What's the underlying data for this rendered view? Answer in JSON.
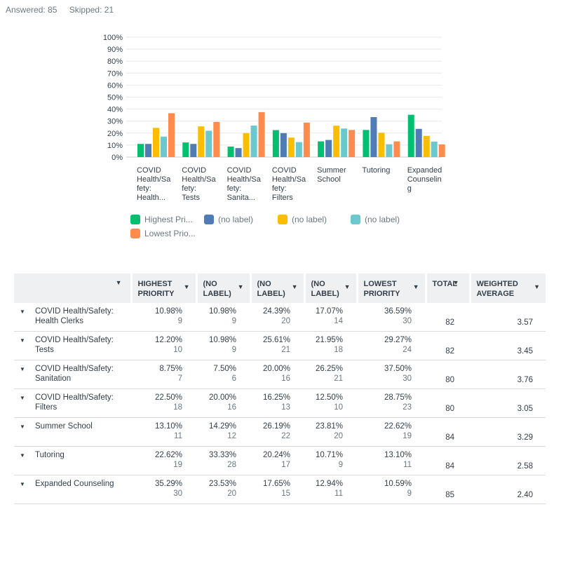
{
  "summary": {
    "answered": "Answered: 85",
    "skipped": "Skipped: 21"
  },
  "colors": [
    "#00bf6f",
    "#507cb6",
    "#f9be00",
    "#6bc8cd",
    "#ff8b4f"
  ],
  "chart_data": {
    "type": "bar",
    "categories": [
      [
        "COVID",
        "Health/Sa",
        "fety:",
        "Health..."
      ],
      [
        "COVID",
        "Health/Sa",
        "fety:",
        "Tests"
      ],
      [
        "COVID",
        "Health/Sa",
        "fety:",
        "Sanita..."
      ],
      [
        "COVID",
        "Health/Sa",
        "fety:",
        "Filters"
      ],
      [
        "Summer",
        "School"
      ],
      [
        "Tutoring"
      ],
      [
        "Expanded",
        "Counselin",
        "g"
      ]
    ],
    "series": [
      {
        "name": "Highest Pri...",
        "values": [
          10.98,
          12.2,
          8.75,
          22.5,
          13.1,
          22.62,
          35.29
        ]
      },
      {
        "name": "(no label)",
        "values": [
          10.98,
          10.98,
          7.5,
          20.0,
          14.29,
          33.33,
          23.53
        ]
      },
      {
        "name": "(no label)",
        "values": [
          24.39,
          25.61,
          20.0,
          16.25,
          26.19,
          20.24,
          17.65
        ]
      },
      {
        "name": "(no label)",
        "values": [
          17.07,
          21.95,
          26.25,
          12.5,
          23.81,
          10.71,
          12.94
        ]
      },
      {
        "name": "Lowest Prio...",
        "values": [
          36.59,
          29.27,
          37.5,
          28.75,
          22.62,
          13.1,
          10.59
        ]
      }
    ],
    "yticks": [
      "0%",
      "10%",
      "20%",
      "30%",
      "40%",
      "50%",
      "60%",
      "70%",
      "80%",
      "90%",
      "100%"
    ],
    "ylim": [
      0,
      100
    ],
    "grid": true,
    "legend_position": "bottom"
  },
  "table": {
    "headers": [
      {
        "lines": [
          "",
          ""
        ]
      },
      {
        "lines": [
          "HIGHEST",
          "PRIORITY"
        ]
      },
      {
        "lines": [
          "(NO",
          "LABEL)"
        ]
      },
      {
        "lines": [
          "(NO",
          "LABEL)"
        ]
      },
      {
        "lines": [
          "(NO",
          "LABEL)"
        ]
      },
      {
        "lines": [
          "LOWEST",
          "PRIORITY"
        ]
      },
      {
        "lines": [
          "TOTAL",
          ""
        ]
      },
      {
        "lines": [
          "WEIGHTED",
          "AVERAGE"
        ]
      }
    ],
    "rows": [
      {
        "label": [
          "COVID Health/Safety:",
          "Health Clerks"
        ],
        "cells": [
          [
            "10.98%",
            "9"
          ],
          [
            "10.98%",
            "9"
          ],
          [
            "24.39%",
            "20"
          ],
          [
            "17.07%",
            "14"
          ],
          [
            "36.59%",
            "30"
          ]
        ],
        "total": "82",
        "avg": "3.57"
      },
      {
        "label": [
          "COVID Health/Safety:",
          "Tests"
        ],
        "cells": [
          [
            "12.20%",
            "10"
          ],
          [
            "10.98%",
            "9"
          ],
          [
            "25.61%",
            "21"
          ],
          [
            "21.95%",
            "18"
          ],
          [
            "29.27%",
            "24"
          ]
        ],
        "total": "82",
        "avg": "3.45"
      },
      {
        "label": [
          "COVID Health/Safety:",
          "Sanitation"
        ],
        "cells": [
          [
            "8.75%",
            "7"
          ],
          [
            "7.50%",
            "6"
          ],
          [
            "20.00%",
            "16"
          ],
          [
            "26.25%",
            "21"
          ],
          [
            "37.50%",
            "30"
          ]
        ],
        "total": "80",
        "avg": "3.76"
      },
      {
        "label": [
          "COVID Health/Safety:",
          "Filters"
        ],
        "cells": [
          [
            "22.50%",
            "18"
          ],
          [
            "20.00%",
            "16"
          ],
          [
            "16.25%",
            "13"
          ],
          [
            "12.50%",
            "10"
          ],
          [
            "28.75%",
            "23"
          ]
        ],
        "total": "80",
        "avg": "3.05"
      },
      {
        "label": [
          "Summer School",
          ""
        ],
        "cells": [
          [
            "13.10%",
            "11"
          ],
          [
            "14.29%",
            "12"
          ],
          [
            "26.19%",
            "22"
          ],
          [
            "23.81%",
            "20"
          ],
          [
            "22.62%",
            "19"
          ]
        ],
        "total": "84",
        "avg": "3.29"
      },
      {
        "label": [
          "Tutoring",
          ""
        ],
        "cells": [
          [
            "22.62%",
            "19"
          ],
          [
            "33.33%",
            "28"
          ],
          [
            "20.24%",
            "17"
          ],
          [
            "10.71%",
            "9"
          ],
          [
            "13.10%",
            "11"
          ]
        ],
        "total": "84",
        "avg": "2.58"
      },
      {
        "label": [
          "Expanded Counseling",
          ""
        ],
        "cells": [
          [
            "35.29%",
            "30"
          ],
          [
            "23.53%",
            "20"
          ],
          [
            "17.65%",
            "15"
          ],
          [
            "12.94%",
            "11"
          ],
          [
            "10.59%",
            "9"
          ]
        ],
        "total": "85",
        "avg": "2.40"
      }
    ]
  }
}
